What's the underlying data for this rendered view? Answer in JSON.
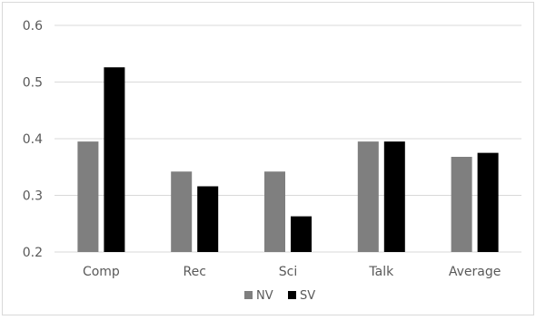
{
  "chart_data": {
    "type": "bar",
    "title": "",
    "xlabel": "",
    "ylabel": "",
    "categories": [
      "Comp",
      "Rec",
      "Sci",
      "Talk",
      "Average"
    ],
    "series": [
      {
        "name": "NV",
        "color": "#7f7f7f",
        "values": [
          0.395,
          0.342,
          0.342,
          0.395,
          0.368
        ]
      },
      {
        "name": "SV",
        "color": "#000000",
        "values": [
          0.526,
          0.316,
          0.263,
          0.395,
          0.375
        ]
      }
    ],
    "ylim": [
      0.2,
      0.6
    ],
    "yticks": [
      0.2,
      0.3,
      0.4,
      0.5,
      0.6
    ],
    "ytick_labels": [
      "0.2",
      "0.3",
      "0.4",
      "0.5",
      "0.6"
    ],
    "grid": true,
    "legend": "bottom-center"
  }
}
